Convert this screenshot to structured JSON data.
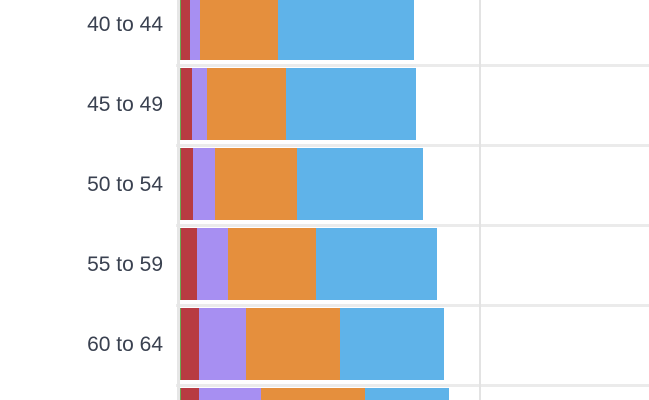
{
  "chart_data": {
    "type": "bar",
    "orientation": "horizontal",
    "stacked": true,
    "title": "",
    "xlabel": "",
    "ylabel": "",
    "categories": [
      "40 to 44",
      "45 to 49",
      "50 to 54",
      "55 to 59",
      "60 to 64",
      ""
    ],
    "xlim": [
      0,
      470
    ],
    "gridline_at": 300,
    "series": [
      {
        "name": "green",
        "color": "#6aa84f",
        "values": [
          1,
          1,
          1,
          1,
          1,
          1
        ]
      },
      {
        "name": "red",
        "color": "#b83b42",
        "values": [
          9,
          11,
          12,
          16,
          18,
          18
        ]
      },
      {
        "name": "purple",
        "color": "#a78ff2",
        "values": [
          10,
          15,
          22,
          31,
          47,
          62
        ]
      },
      {
        "name": "orange",
        "color": "#e58f3d",
        "values": [
          78,
          79,
          82,
          88,
          94,
          104
        ]
      },
      {
        "name": "blue",
        "color": "#5fb3e9",
        "values": [
          136,
          130,
          126,
          121,
          104,
          84
        ]
      }
    ]
  }
}
